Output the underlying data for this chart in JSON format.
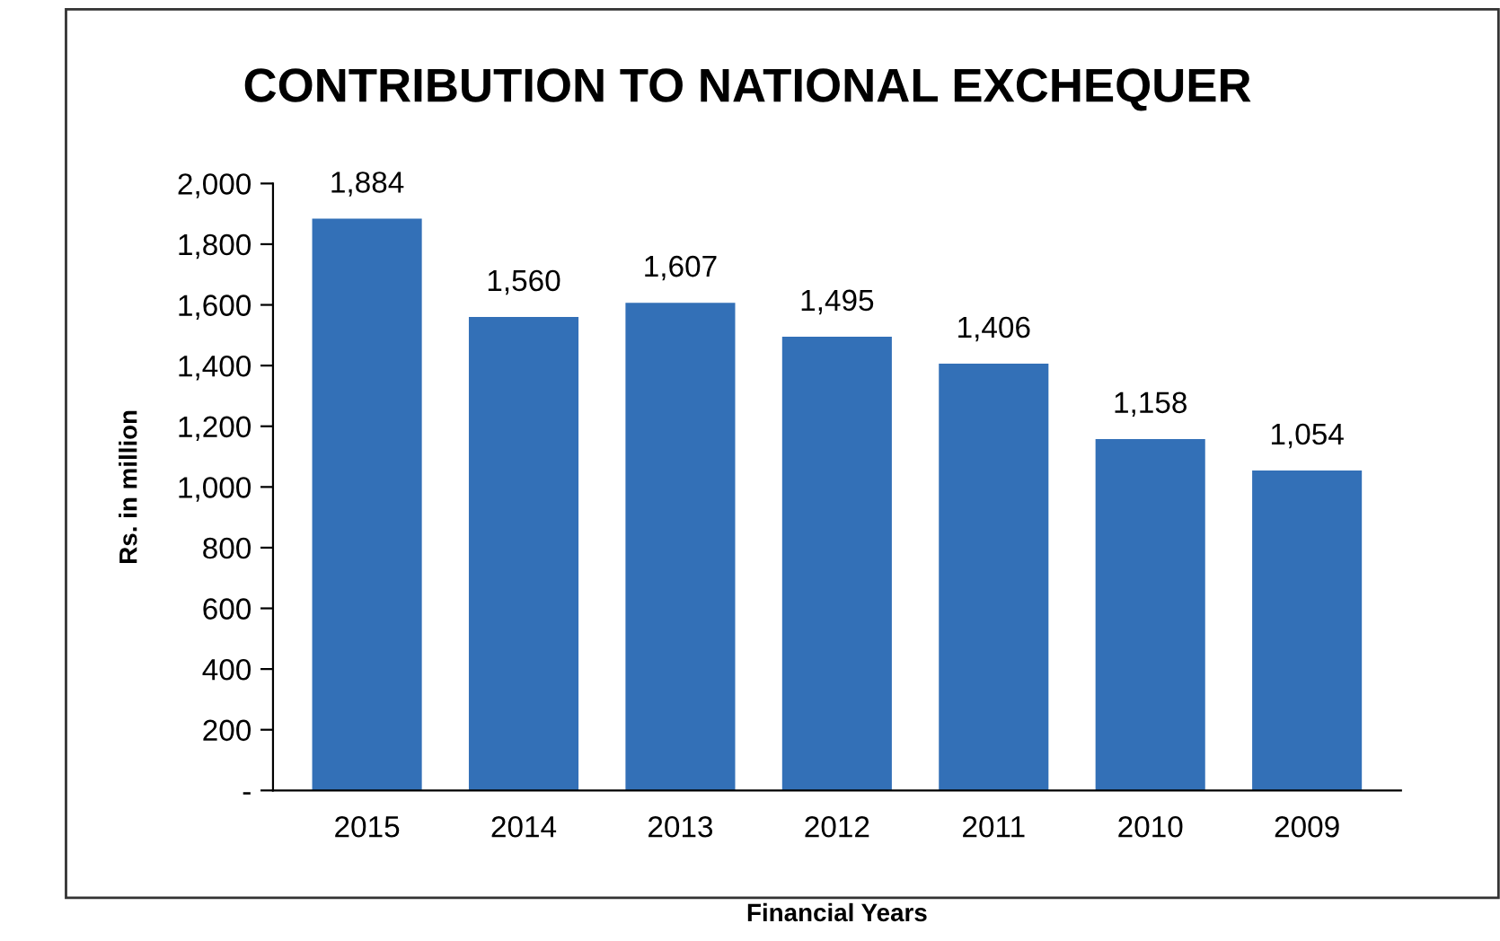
{
  "chart_data": {
    "type": "bar",
    "title": "CONTRIBUTION TO NATIONAL EXCHEQUER",
    "xlabel": "Financial Years",
    "ylabel": "Rs. in million",
    "categories": [
      "2015",
      "2014",
      "2013",
      "2012",
      "2011",
      "2010",
      "2009"
    ],
    "values": [
      1884,
      1560,
      1607,
      1495,
      1406,
      1158,
      1054
    ],
    "value_labels": [
      "1,884",
      "1,560",
      "1,607",
      "1,495",
      "1,406",
      "1,158",
      "1,054"
    ],
    "color": "#3370b7",
    "ylim": [
      0,
      2000
    ],
    "yticks": [
      {
        "value": 0,
        "label": "-"
      },
      {
        "value": 200,
        "label": "200"
      },
      {
        "value": 400,
        "label": "400"
      },
      {
        "value": 600,
        "label": "600"
      },
      {
        "value": 800,
        "label": "800"
      },
      {
        "value": 1000,
        "label": "1,000"
      },
      {
        "value": 1200,
        "label": "1,200"
      },
      {
        "value": 1400,
        "label": "1,400"
      },
      {
        "value": 1600,
        "label": "1,600"
      },
      {
        "value": 1800,
        "label": "1,800"
      },
      {
        "value": 2000,
        "label": "2,000"
      }
    ],
    "grid": false,
    "legend": false
  }
}
